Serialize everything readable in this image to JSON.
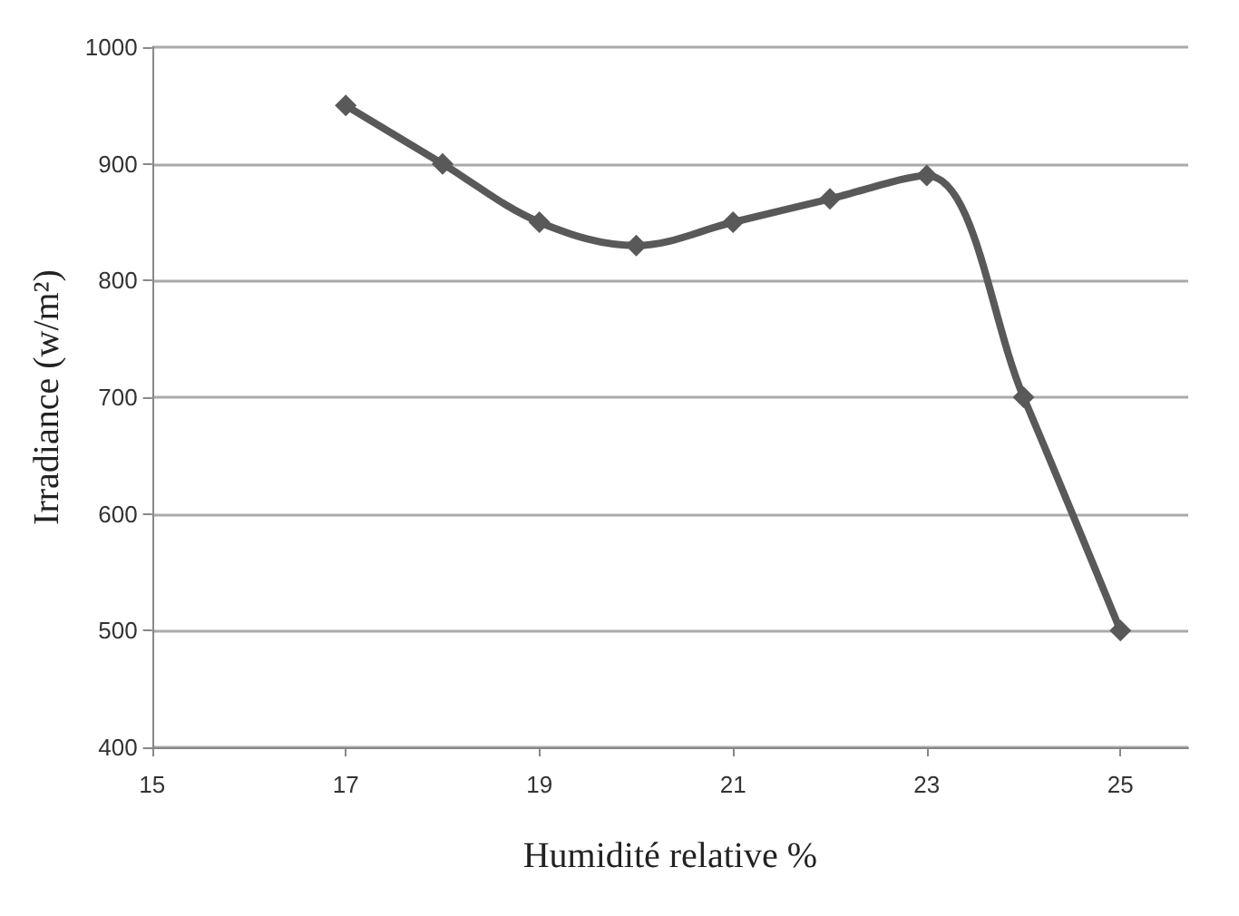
{
  "chart_data": {
    "type": "line",
    "xlabel": "Humidité relative %",
    "ylabel": "Irradiance (w/m²)",
    "x": [
      17,
      18,
      19,
      20,
      21,
      22,
      23,
      24,
      25
    ],
    "series": [
      {
        "color": "#595959",
        "values": [
          950,
          900,
          850,
          830,
          850,
          870,
          890,
          700,
          500
        ]
      }
    ],
    "xlim": [
      15,
      25.7
    ],
    "xticks": [
      15,
      17,
      19,
      21,
      23,
      25
    ],
    "ylim": [
      400,
      1000
    ],
    "yticks": [
      400,
      500,
      600,
      700,
      800,
      900,
      1000
    ],
    "grid": "y",
    "marker": "diamond",
    "line_style": "solid"
  }
}
